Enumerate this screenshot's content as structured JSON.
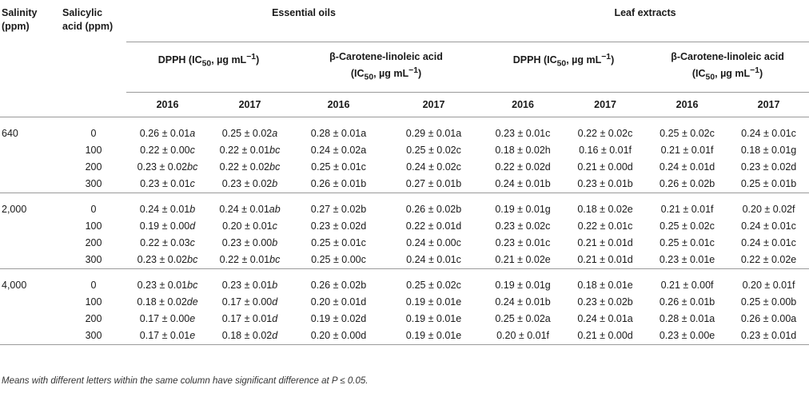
{
  "header": {
    "salinity": [
      "Salinity",
      "(ppm)"
    ],
    "salicylic": [
      "Salicylic",
      "acid (ppm)"
    ],
    "essential_oils": "Essential oils",
    "leaf_extracts": "Leaf extracts",
    "dpph": [
      "DPPH (IC",
      "50",
      ", µg mL",
      "−1",
      ")"
    ],
    "carotene": [
      "β-Carotene-linoleic acid",
      "(IC",
      "50",
      ", µg mL",
      "−1",
      ")"
    ],
    "years": [
      "2016",
      "2017",
      "2016",
      "2017",
      "2016",
      "2017",
      "2016",
      "2017"
    ]
  },
  "groups": [
    {
      "salinity": "640",
      "rows": [
        {
          "sa": "0",
          "v": [
            [
              "0.26 ± 0.01",
              "a"
            ],
            [
              "0.25 ± 0.02",
              "a"
            ],
            [
              "0.28 ± 0.01a",
              ""
            ],
            [
              "0.29 ± 0.01a",
              ""
            ],
            [
              "0.23 ± 0.01c",
              ""
            ],
            [
              "0.22 ± 0.02c",
              ""
            ],
            [
              "0.25 ± 0.02c",
              ""
            ],
            [
              "0.24 ± 0.01c",
              ""
            ]
          ]
        },
        {
          "sa": "100",
          "v": [
            [
              "0.22 ± 0.00",
              "c"
            ],
            [
              "0.22 ± 0.01",
              "bc"
            ],
            [
              "0.24 ± 0.02a",
              ""
            ],
            [
              "0.25 ± 0.02c",
              ""
            ],
            [
              "0.18 ± 0.02h",
              ""
            ],
            [
              "0.16 ± 0.01f",
              ""
            ],
            [
              "0.21 ± 0.01f",
              ""
            ],
            [
              "0.18 ± 0.01g",
              ""
            ]
          ]
        },
        {
          "sa": "200",
          "v": [
            [
              "0.23 ± 0.02",
              "bc"
            ],
            [
              "0.22 ± 0.02",
              "bc"
            ],
            [
              "0.25 ± 0.01c",
              ""
            ],
            [
              "0.24 ± 0.02c",
              ""
            ],
            [
              "0.22 ± 0.02d",
              ""
            ],
            [
              "0.21 ± 0.00d",
              ""
            ],
            [
              "0.24 ± 0.01d",
              ""
            ],
            [
              "0.23 ± 0.02d",
              ""
            ]
          ]
        },
        {
          "sa": "300",
          "v": [
            [
              "0.23 ± 0.01",
              "c"
            ],
            [
              "0.23 ± 0.02",
              "b"
            ],
            [
              "0.26 ± 0.01b",
              ""
            ],
            [
              "0.27 ± 0.01b",
              ""
            ],
            [
              "0.24 ± 0.01b",
              ""
            ],
            [
              "0.23 ± 0.01b",
              ""
            ],
            [
              "0.26 ± 0.02b",
              ""
            ],
            [
              "0.25 ± 0.01b",
              ""
            ]
          ]
        }
      ]
    },
    {
      "salinity": "2,000",
      "rows": [
        {
          "sa": "0",
          "v": [
            [
              "0.24 ± 0.01",
              "b"
            ],
            [
              "0.24 ± 0.01",
              "ab"
            ],
            [
              "0.27 ± 0.02b",
              ""
            ],
            [
              "0.26 ± 0.02b",
              ""
            ],
            [
              "0.19 ± 0.01g",
              ""
            ],
            [
              "0.18 ± 0.02e",
              ""
            ],
            [
              "0.21 ± 0.01f",
              ""
            ],
            [
              "0.20 ± 0.02f",
              ""
            ]
          ]
        },
        {
          "sa": "100",
          "v": [
            [
              "0.19 ± 0.00",
              "d"
            ],
            [
              "0.20 ± 0.01",
              "c"
            ],
            [
              "0.23 ± 0.02d",
              ""
            ],
            [
              "0.22 ± 0.01d",
              ""
            ],
            [
              "0.23 ± 0.02c",
              ""
            ],
            [
              "0.22 ± 0.01c",
              ""
            ],
            [
              "0.25 ± 0.02c",
              ""
            ],
            [
              "0.24 ± 0.01c",
              ""
            ]
          ]
        },
        {
          "sa": "200",
          "v": [
            [
              "0.22 ± 0.03",
              "c"
            ],
            [
              "0.23 ± 0.00",
              "b"
            ],
            [
              "0.25 ± 0.01c",
              ""
            ],
            [
              "0.24 ± 0.00c",
              ""
            ],
            [
              "0.23 ± 0.01c",
              ""
            ],
            [
              "0.21 ± 0.01d",
              ""
            ],
            [
              "0.25 ± 0.01c",
              ""
            ],
            [
              "0.24 ± 0.01c",
              ""
            ]
          ]
        },
        {
          "sa": "300",
          "v": [
            [
              "0.23 ± 0.02",
              "bc"
            ],
            [
              "0.22 ± 0.01",
              "bc"
            ],
            [
              "0.25 ± 0.00c",
              ""
            ],
            [
              "0.24 ± 0.01c",
              ""
            ],
            [
              "0.21 ± 0.02e",
              ""
            ],
            [
              "0.21 ± 0.01d",
              ""
            ],
            [
              "0.23 ± 0.01e",
              ""
            ],
            [
              "0.22 ± 0.02e",
              ""
            ]
          ]
        }
      ]
    },
    {
      "salinity": "4,000",
      "rows": [
        {
          "sa": "0",
          "v": [
            [
              "0.23 ± 0.01",
              "bc"
            ],
            [
              "0.23 ± 0.01",
              "b"
            ],
            [
              "0.26 ± 0.02b",
              ""
            ],
            [
              "0.25 ± 0.02c",
              ""
            ],
            [
              "0.19 ± 0.01g",
              ""
            ],
            [
              "0.18 ± 0.01e",
              ""
            ],
            [
              "0.21 ± 0.00f",
              ""
            ],
            [
              "0.20 ± 0.01f",
              ""
            ]
          ]
        },
        {
          "sa": "100",
          "v": [
            [
              "0.18 ± 0.02",
              "de"
            ],
            [
              "0.17 ± 0.00",
              "d"
            ],
            [
              "0.20 ± 0.01d",
              ""
            ],
            [
              "0.19 ± 0.01e",
              ""
            ],
            [
              "0.24 ± 0.01b",
              ""
            ],
            [
              "0.23 ± 0.02b",
              ""
            ],
            [
              "0.26 ± 0.01b",
              ""
            ],
            [
              "0.25 ± 0.00b",
              ""
            ]
          ]
        },
        {
          "sa": "200",
          "v": [
            [
              "0.17 ± 0.00",
              "e"
            ],
            [
              "0.17 ± 0.01",
              "d"
            ],
            [
              "0.19 ± 0.02d",
              ""
            ],
            [
              "0.19 ± 0.01e",
              ""
            ],
            [
              "0.25 ± 0.02a",
              ""
            ],
            [
              "0.24 ± 0.01a",
              ""
            ],
            [
              "0.28 ± 0.01a",
              ""
            ],
            [
              "0.26 ± 0.00a",
              ""
            ]
          ]
        },
        {
          "sa": "300",
          "v": [
            [
              "0.17 ± 0.01",
              "e"
            ],
            [
              "0.18 ± 0.02",
              "d"
            ],
            [
              "0.20 ± 0.00d",
              ""
            ],
            [
              "0.19 ± 0.01e",
              ""
            ],
            [
              "0.20 ± 0.01f",
              ""
            ],
            [
              "0.21 ± 0.00d",
              ""
            ],
            [
              "0.23 ± 0.00e",
              ""
            ],
            [
              "0.23 ± 0.01d",
              ""
            ]
          ]
        }
      ]
    }
  ],
  "footnote": "Means with different letters within the same column have significant difference at P ≤ 0.05."
}
